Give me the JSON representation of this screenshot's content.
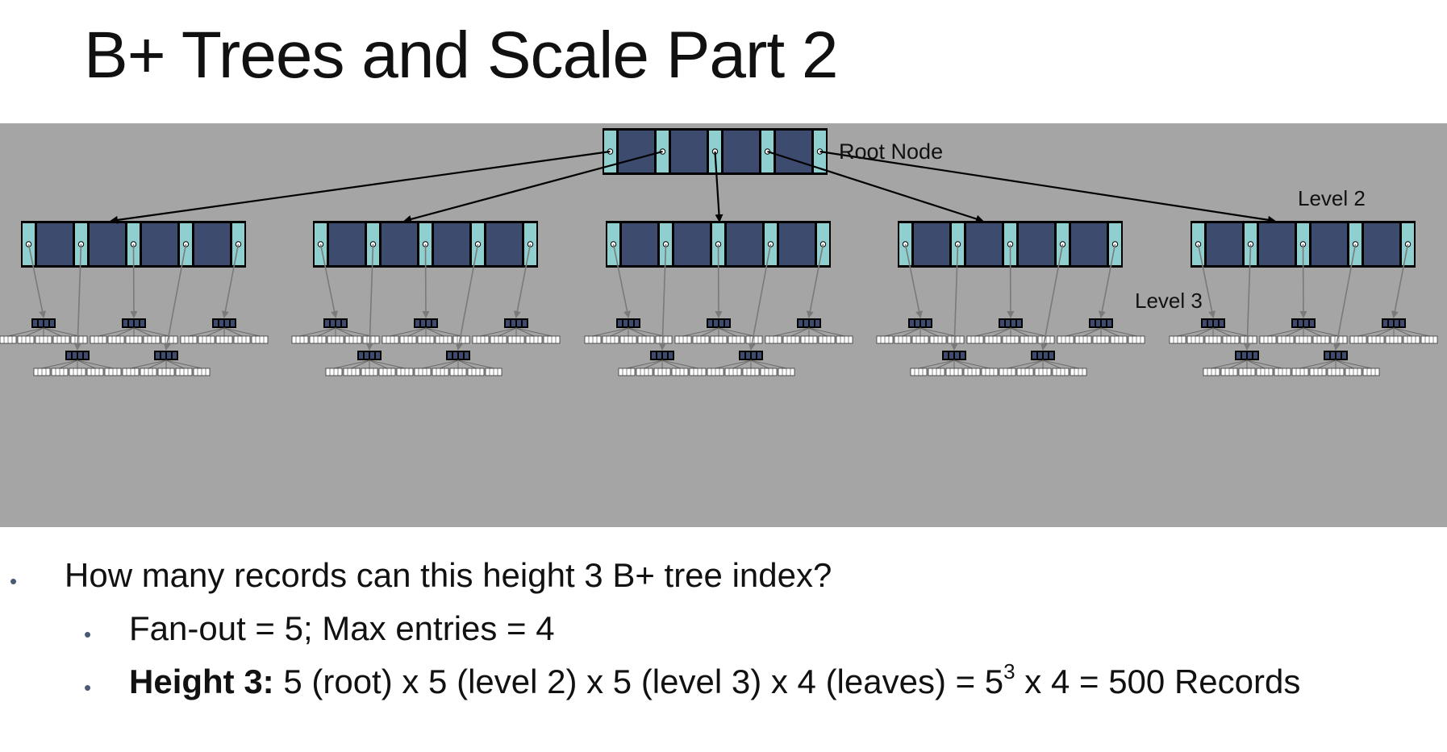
{
  "slide": {
    "title": "B+ Trees and Scale Part 2"
  },
  "diagram": {
    "root_label": "Root Node",
    "level2_label": "Level 2",
    "level3_label": "Level 3",
    "colors": {
      "background": "#a5a5a5",
      "key_cell": "#3c4b6e",
      "pointer_cell": "#8fcfcf",
      "node_border": "#000000",
      "leaf_fill": "#ffffff"
    },
    "fan_out": 5,
    "max_entries": 4,
    "level2_node_count": 5,
    "level3_nodes_per_parent": 5
  },
  "bullets": {
    "question": "How many records can this height 3 B+ tree index?",
    "fanout_line": "Fan-out = 5; Max entries = 4",
    "height_label": "Height 3:",
    "height_formula_pre": " 5 (root) x 5 (level 2) x 5 (level 3) x 4 (leaves) = 5",
    "height_exponent": "3",
    "height_formula_post": " x 4 = 500 Records"
  }
}
